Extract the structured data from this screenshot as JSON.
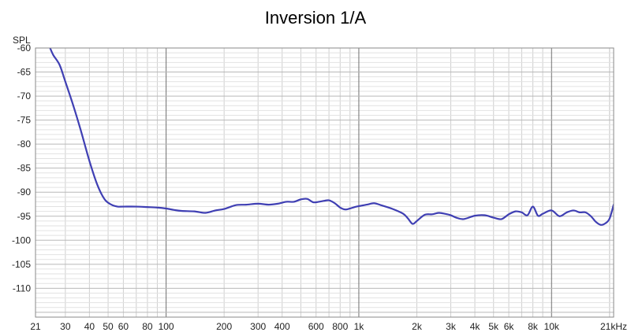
{
  "chart_data": {
    "type": "line",
    "title": "Inversion 1/A",
    "ylabel": "SPL",
    "xlabel": "",
    "x_scale": "log",
    "xlim": [
      21,
      21000
    ],
    "ylim": [
      -116,
      -60
    ],
    "grid": true,
    "y_ticks": [
      -60,
      -65,
      -70,
      -75,
      -80,
      -85,
      -90,
      -95,
      -100,
      -105,
      -110
    ],
    "y_tick_labels": [
      "-60",
      "-65",
      "-70",
      "-75",
      "-80",
      "-85",
      "-90",
      "-95",
      "-100",
      "-105",
      "-110"
    ],
    "x_ticks": [
      21,
      30,
      40,
      50,
      60,
      80,
      100,
      200,
      300,
      400,
      600,
      800,
      1000,
      2000,
      3000,
      4000,
      5000,
      6000,
      8000,
      10000,
      21000
    ],
    "x_tick_labels": [
      "21",
      "30",
      "40",
      "50",
      "60",
      "80",
      "100",
      "200",
      "300",
      "400",
      "600",
      "800",
      "1k",
      "2k",
      "3k",
      "4k",
      "5k",
      "6k",
      "8k",
      "10k",
      "21kHz"
    ],
    "series_color": "#3f3fb3",
    "series": [
      {
        "x": [
          25,
          26,
          28,
          30,
          33,
          36,
          40,
          44,
          48,
          52,
          56,
          60,
          70,
          80,
          90,
          100,
          110,
          120,
          140,
          160,
          180,
          200,
          230,
          260,
          300,
          340,
          380,
          420,
          460,
          500,
          540,
          580,
          620,
          660,
          700,
          750,
          800,
          850,
          900,
          950,
          1000,
          1100,
          1200,
          1300,
          1500,
          1700,
          1800,
          1900,
          2000,
          2200,
          2400,
          2600,
          2800,
          3000,
          3200,
          3500,
          4000,
          4500,
          5000,
          5500,
          6000,
          6500,
          7000,
          7500,
          8000,
          8500,
          9000,
          10000,
          11000,
          12000,
          13000,
          14000,
          15000,
          16000,
          17000,
          18000,
          19000,
          20000,
          21000
        ],
        "y": [
          -60.0,
          -61.5,
          -63.5,
          -67.0,
          -72.0,
          -77.0,
          -83.5,
          -88.5,
          -91.5,
          -92.6,
          -93.0,
          -93.0,
          -93.0,
          -93.1,
          -93.2,
          -93.4,
          -93.7,
          -93.9,
          -94.0,
          -94.3,
          -93.8,
          -93.5,
          -92.7,
          -92.6,
          -92.4,
          -92.6,
          -92.4,
          -92.0,
          -92.0,
          -91.5,
          -91.4,
          -92.1,
          -92.0,
          -91.8,
          -91.7,
          -92.3,
          -93.2,
          -93.6,
          -93.4,
          -93.1,
          -92.9,
          -92.6,
          -92.3,
          -92.7,
          -93.5,
          -94.5,
          -95.5,
          -96.6,
          -96.0,
          -94.7,
          -94.6,
          -94.3,
          -94.5,
          -94.8,
          -95.3,
          -95.6,
          -94.9,
          -94.8,
          -95.3,
          -95.6,
          -94.6,
          -94.0,
          -94.2,
          -94.8,
          -93.0,
          -94.9,
          -94.5,
          -93.8,
          -95.0,
          -94.2,
          -93.8,
          -94.2,
          -94.2,
          -95.0,
          -96.2,
          -96.8,
          -96.5,
          -95.5,
          -92.6
        ]
      }
    ]
  }
}
